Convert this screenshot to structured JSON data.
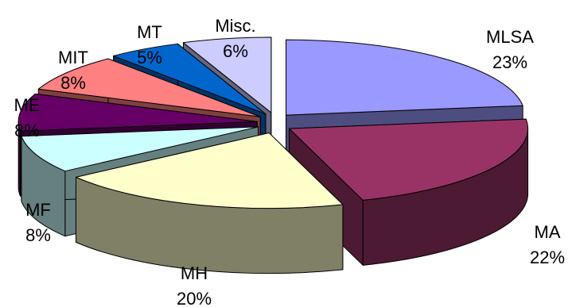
{
  "chart_data": {
    "type": "pie",
    "title": "",
    "exploded": true,
    "three_d": true,
    "slices": [
      {
        "label": "MLSA",
        "pct_label": "23%",
        "value": 23,
        "color": "#9999ff",
        "side": "#4d4d80"
      },
      {
        "label": "MA",
        "pct_label": "22%",
        "value": 22,
        "color": "#993366",
        "side": "#4d1a33"
      },
      {
        "label": "MH",
        "pct_label": "20%",
        "value": 20,
        "color": "#ffffcc",
        "side": "#808066"
      },
      {
        "label": "MF",
        "pct_label": "8%",
        "value": 8,
        "color": "#ccffff",
        "side": "#668080"
      },
      {
        "label": "ME",
        "pct_label": "8%",
        "value": 8,
        "color": "#660066",
        "side": "#330033"
      },
      {
        "label": "MIT",
        "pct_label": "8%",
        "value": 8,
        "color": "#ff8080",
        "side": "#804040"
      },
      {
        "label": "MT",
        "pct_label": "5%",
        "value": 5,
        "color": "#0066cc",
        "side": "#003366"
      },
      {
        "label": "Misc.",
        "pct_label": "6%",
        "value": 6,
        "color": "#ccccff",
        "side": "#666680"
      }
    ]
  }
}
